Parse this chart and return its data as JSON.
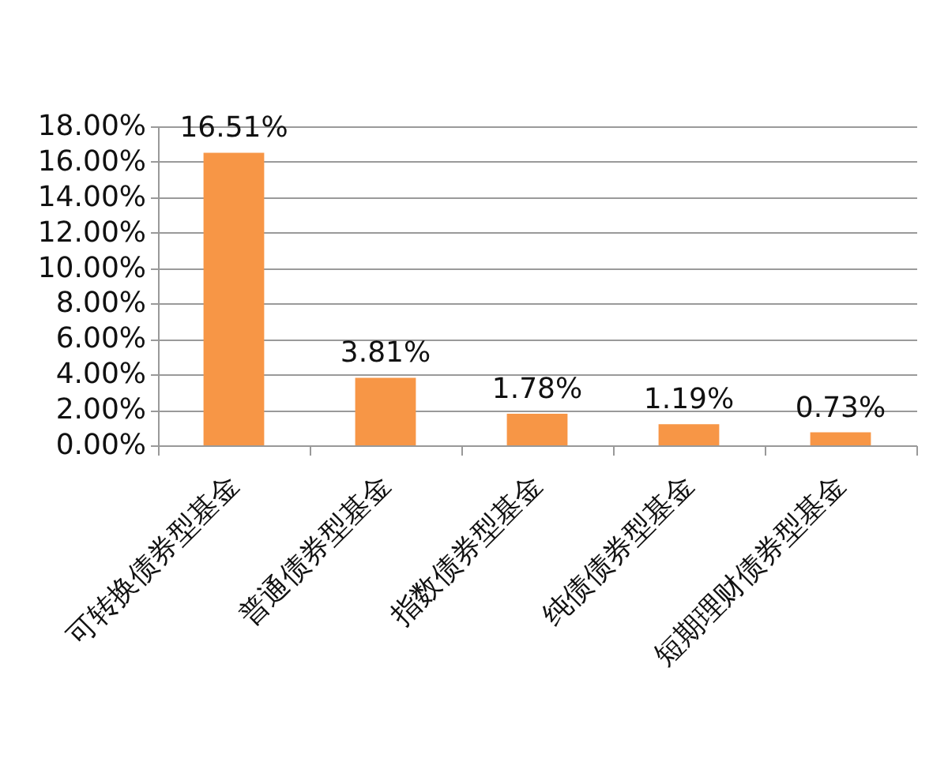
{
  "chart_data": {
    "type": "bar",
    "categories": [
      "可转换债券型基金",
      "普通债券型基金",
      "指数债券型基金",
      "纯债债券型基金",
      "短期理财债券型基金"
    ],
    "values": [
      16.51,
      3.81,
      1.78,
      1.19,
      0.73
    ],
    "color": "#f79646",
    "value_labels": [
      "16.51%",
      "3.81%",
      "1.78%",
      "1.19%",
      "0.73%"
    ],
    "ylim": [
      0,
      18
    ],
    "yticks": [
      {
        "value": 0,
        "label": "0.00%"
      },
      {
        "value": 2,
        "label": "2.00%"
      },
      {
        "value": 4,
        "label": "4.00%"
      },
      {
        "value": 6,
        "label": "6.00%"
      },
      {
        "value": 8,
        "label": "8.00%"
      },
      {
        "value": 10,
        "label": "10.00%"
      },
      {
        "value": 12,
        "label": "12.00%"
      },
      {
        "value": 14,
        "label": "14.00%"
      },
      {
        "value": 16,
        "label": "16.00%"
      },
      {
        "value": 18,
        "label": "18.00%"
      }
    ],
    "grid": "y"
  }
}
